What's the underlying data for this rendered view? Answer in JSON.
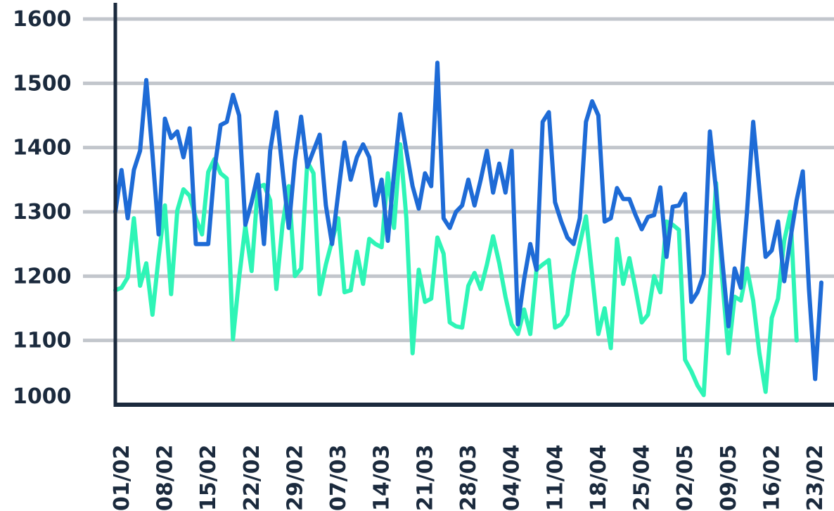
{
  "chart_data": {
    "type": "line",
    "ylim": [
      1000,
      1600
    ],
    "yticks": [
      "1600",
      "1500",
      "1400",
      "1300",
      "1200",
      "1100",
      "1000"
    ],
    "ytick_values": [
      1600,
      1500,
      1400,
      1300,
      1200,
      1100,
      1000
    ],
    "xlabels": [
      "01/02",
      "08/02",
      "15/02",
      "22/02",
      "29/02",
      "07/03",
      "14/03",
      "21/03",
      "28/03",
      "04/04",
      "11/04",
      "18/04",
      "25/04",
      "02/05",
      "09/05",
      "16/02",
      "23/02"
    ],
    "xlabel_index": [
      1,
      8,
      15,
      22,
      29,
      36,
      43,
      50,
      57,
      64,
      71,
      78,
      85,
      92,
      99,
      106,
      113
    ],
    "grid": true,
    "colors": {
      "series1": "#1e6bd6",
      "series2": "#2ef5b6",
      "axis": "#1b2a3d",
      "grid": "#c2c6cc",
      "tick_text": "#1b2a3d"
    },
    "series": [
      {
        "color": "#1e6bd6",
        "values": [
          1300,
          1365,
          1290,
          1365,
          1395,
          1505,
          1390,
          1265,
          1445,
          1415,
          1425,
          1385,
          1430,
          1250,
          1250,
          1250,
          1365,
          1435,
          1440,
          1482,
          1450,
          1280,
          1315,
          1358,
          1250,
          1395,
          1455,
          1365,
          1275,
          1380,
          1448,
          1370,
          1395,
          1420,
          1310,
          1250,
          1330,
          1408,
          1350,
          1385,
          1405,
          1385,
          1310,
          1350,
          1255,
          1360,
          1452,
          1395,
          1340,
          1305,
          1360,
          1340,
          1532,
          1290,
          1275,
          1300,
          1310,
          1350,
          1310,
          1350,
          1395,
          1330,
          1375,
          1330,
          1395,
          1125,
          1195,
          1250,
          1210,
          1440,
          1455,
          1315,
          1285,
          1260,
          1250,
          1290,
          1440,
          1472,
          1450,
          1285,
          1290,
          1337,
          1320,
          1320,
          1295,
          1273,
          1292,
          1295,
          1338,
          1230,
          1308,
          1310,
          1328,
          1160,
          1175,
          1203,
          1425,
          1333,
          1225,
          1122,
          1212,
          1182,
          1300,
          1440,
          1335,
          1230,
          1240,
          1285,
          1192,
          1258,
          1318,
          1363,
          1180,
          1040,
          1190
        ]
      },
      {
        "color": "#2ef5b6",
        "values": [
          1178,
          1182,
          1198,
          1290,
          1185,
          1220,
          1140,
          1230,
          1310,
          1172,
          1302,
          1335,
          1325,
          1290,
          1265,
          1362,
          1382,
          1360,
          1352,
          1102,
          1198,
          1278,
          1208,
          1338,
          1342,
          1318,
          1180,
          1280,
          1340,
          1200,
          1212,
          1378,
          1360,
          1172,
          1218,
          1255,
          1290,
          1175,
          1178,
          1238,
          1188,
          1258,
          1250,
          1245,
          1360,
          1275,
          1405,
          1290,
          1080,
          1210,
          1160,
          1165,
          1260,
          1235,
          1128,
          1122,
          1120,
          1185,
          1205,
          1180,
          1218,
          1262,
          1220,
          1168,
          1125,
          1110,
          1148,
          1110,
          1210,
          1218,
          1225,
          1120,
          1125,
          1140,
          1205,
          1250,
          1293,
          1202,
          1110,
          1150,
          1088,
          1258,
          1188,
          1228,
          1180,
          1128,
          1140,
          1200,
          1175,
          1285,
          1280,
          1272,
          1070,
          1052,
          1030,
          1015,
          1175,
          1345,
          1195,
          1080,
          1168,
          1162,
          1212,
          1162,
          1080,
          1020,
          1135,
          1165,
          1255,
          1300,
          1100
        ]
      }
    ]
  }
}
